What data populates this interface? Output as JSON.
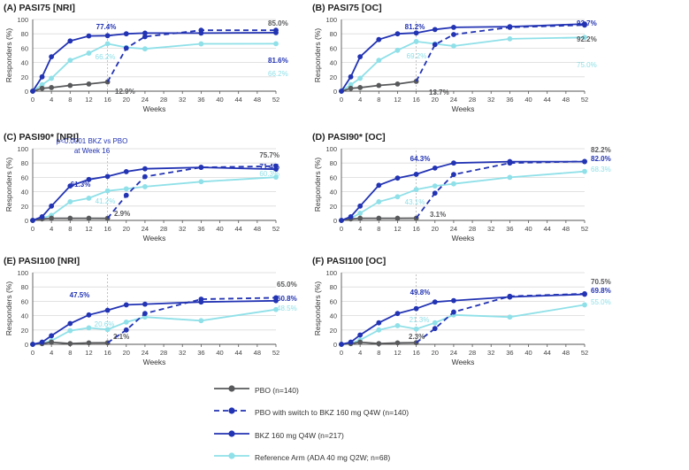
{
  "colors": {
    "pbo": "#58595b",
    "switch": "#2233b3",
    "bkz": "#2233b3",
    "ada": "#8fe0e8",
    "grid": "#d9d9d9",
    "axis": "#555555",
    "dashed_ref": "#b5b5b5"
  },
  "legend": {
    "items": [
      {
        "key": "pbo",
        "label": "PBO (n=140)"
      },
      {
        "key": "switch",
        "label": "PBO with switch to BKZ 160 mg Q4W (n=140)"
      },
      {
        "key": "bkz",
        "label": "BKZ 160 mg Q4W (n=217)"
      },
      {
        "key": "ada",
        "label": "Reference Arm (ADA 40 mg Q2W; n=68)"
      }
    ]
  },
  "chart_data": [
    {
      "type": "line",
      "title": "(A) PASI75 [NRI]",
      "xlabel": "Weeks",
      "ylabel": "Responders (%)",
      "xlim": [
        0,
        52
      ],
      "ylim": [
        0,
        100
      ],
      "xticks": [
        0,
        4,
        8,
        12,
        16,
        20,
        24,
        28,
        32,
        36,
        40,
        44,
        48,
        52
      ],
      "yticks": [
        0,
        20,
        40,
        60,
        80,
        100
      ],
      "series": [
        {
          "name": "PBO (n=140)",
          "key": "pbo",
          "x": [
            0,
            2,
            4,
            8,
            12,
            16
          ],
          "y": [
            0,
            4,
            5,
            8,
            10,
            12.9
          ]
        },
        {
          "name": "PBO with switch to BKZ 160 mg Q4W (n=140)",
          "key": "switch",
          "x": [
            16,
            20,
            24,
            36,
            52
          ],
          "y": [
            12.9,
            60,
            76,
            85,
            85.0
          ]
        },
        {
          "name": "BKZ 160 mg Q4W (n=217)",
          "key": "bkz",
          "x": [
            0,
            2,
            4,
            8,
            12,
            16,
            20,
            24,
            36,
            52
          ],
          "y": [
            0,
            20,
            48,
            70,
            77,
            77.4,
            80,
            81,
            81,
            81.6
          ]
        },
        {
          "name": "Reference Arm (ADA 40 mg Q2W; n=68)",
          "key": "ada",
          "x": [
            0,
            2,
            4,
            8,
            12,
            16,
            20,
            24,
            36,
            52
          ],
          "y": [
            0,
            9,
            18,
            43,
            53,
            66.2,
            61,
            59,
            66,
            66.2
          ]
        }
      ],
      "annotations": [
        {
          "text": "77.4%",
          "color": "bkz",
          "bold": true
        },
        {
          "text": "66.2%",
          "color": "ada",
          "bold": false
        },
        {
          "text": "12.9%",
          "color": "pbo",
          "bold": true
        },
        {
          "text": "85.0%",
          "color": "pbo",
          "bold": true
        },
        {
          "text": "81.6%",
          "color": "bkz",
          "bold": true
        },
        {
          "text": "66.2%",
          "color": "ada",
          "bold": false
        }
      ]
    },
    {
      "type": "line",
      "title": "(B) PASI75 [OC]",
      "xlabel": "Weeks",
      "ylabel": "Responders (%)",
      "xlim": [
        0,
        52
      ],
      "ylim": [
        0,
        100
      ],
      "xticks": [
        0,
        4,
        8,
        12,
        16,
        20,
        24,
        28,
        32,
        36,
        40,
        44,
        48,
        52
      ],
      "yticks": [
        0,
        20,
        40,
        60,
        80,
        100
      ],
      "series": [
        {
          "name": "PBO (n=140)",
          "key": "pbo",
          "x": [
            0,
            2,
            4,
            8,
            12,
            16
          ],
          "y": [
            0,
            4,
            5,
            8,
            10,
            13.7
          ]
        },
        {
          "name": "PBO with switch to BKZ 160 mg Q4W (n=140)",
          "key": "switch",
          "x": [
            16,
            20,
            24,
            36,
            52
          ],
          "y": [
            13.7,
            65,
            79,
            89,
            92.2
          ]
        },
        {
          "name": "BKZ 160 mg Q4W (n=217)",
          "key": "bkz",
          "x": [
            0,
            2,
            4,
            8,
            12,
            16,
            20,
            24,
            36,
            52
          ],
          "y": [
            0,
            20,
            48,
            72,
            80,
            81.2,
            86,
            89,
            90,
            93.7
          ]
        },
        {
          "name": "Reference Arm (ADA 40 mg Q2W; n=68)",
          "key": "ada",
          "x": [
            0,
            2,
            4,
            8,
            12,
            16,
            20,
            24,
            36,
            52
          ],
          "y": [
            0,
            9,
            18,
            43,
            57,
            69.2,
            66,
            63,
            73,
            75.0
          ]
        }
      ],
      "annotations": [
        {
          "text": "81.2%",
          "color": "bkz",
          "bold": true
        },
        {
          "text": "69.2%",
          "color": "ada",
          "bold": false
        },
        {
          "text": "13.7%",
          "color": "pbo",
          "bold": true
        },
        {
          "text": "93.7%",
          "color": "bkz",
          "bold": true
        },
        {
          "text": "92.2%",
          "color": "pbo",
          "bold": true
        },
        {
          "text": "75.0%",
          "color": "ada",
          "bold": false
        }
      ]
    },
    {
      "type": "line",
      "title": "(C) PASI90* [NRI]",
      "xlabel": "Weeks",
      "ylabel": "Responders (%)",
      "xlim": [
        0,
        52
      ],
      "ylim": [
        0,
        100
      ],
      "xticks": [
        0,
        4,
        8,
        12,
        16,
        20,
        24,
        28,
        32,
        36,
        40,
        44,
        48,
        52
      ],
      "yticks": [
        0,
        20,
        40,
        60,
        80,
        100
      ],
      "series": [
        {
          "name": "PBO (n=140)",
          "key": "pbo",
          "x": [
            0,
            2,
            4,
            8,
            12,
            16
          ],
          "y": [
            0,
            2,
            3,
            3,
            3,
            2.9
          ]
        },
        {
          "name": "PBO with switch to BKZ 160 mg Q4W (n=140)",
          "key": "switch",
          "x": [
            16,
            20,
            24,
            36,
            52
          ],
          "y": [
            2.9,
            35,
            61,
            74,
            75.7
          ]
        },
        {
          "name": "BKZ 160 mg Q4W (n=217)",
          "key": "bkz",
          "x": [
            0,
            2,
            4,
            8,
            12,
            16,
            20,
            24,
            36,
            52
          ],
          "y": [
            0,
            5,
            20,
            48,
            57,
            61.3,
            68,
            72,
            74,
            71.4
          ]
        },
        {
          "name": "Reference Arm (ADA 40 mg Q2W; n=68)",
          "key": "ada",
          "x": [
            0,
            2,
            4,
            8,
            12,
            16,
            20,
            24,
            36,
            52
          ],
          "y": [
            0,
            3,
            7,
            26,
            31,
            41.2,
            44,
            47,
            54,
            60.3
          ]
        }
      ],
      "annotations": [
        {
          "text": "p<0.0001 BKZ vs PBO",
          "color": "bkz",
          "bold": false
        },
        {
          "text": "at Week 16",
          "color": "bkz",
          "bold": false
        },
        {
          "text": "61.3%",
          "color": "bkz",
          "bold": true
        },
        {
          "text": "41.2%",
          "color": "ada",
          "bold": false
        },
        {
          "text": "2.9%",
          "color": "pbo",
          "bold": true
        },
        {
          "text": "75.7%",
          "color": "pbo",
          "bold": true
        },
        {
          "text": "71.4%",
          "color": "bkz",
          "bold": true
        },
        {
          "text": "60.3%",
          "color": "ada",
          "bold": false
        }
      ]
    },
    {
      "type": "line",
      "title": "(D) PASI90* [OC]",
      "xlabel": "Weeks",
      "ylabel": "Responders (%)",
      "xlim": [
        0,
        52
      ],
      "ylim": [
        0,
        100
      ],
      "xticks": [
        0,
        4,
        8,
        12,
        16,
        20,
        24,
        28,
        32,
        36,
        40,
        44,
        48,
        52
      ],
      "yticks": [
        0,
        20,
        40,
        60,
        80,
        100
      ],
      "series": [
        {
          "name": "PBO (n=140)",
          "key": "pbo",
          "x": [
            0,
            2,
            4,
            8,
            12,
            16
          ],
          "y": [
            0,
            2,
            3,
            3,
            3,
            3.1
          ]
        },
        {
          "name": "PBO with switch to BKZ 160 mg Q4W (n=140)",
          "key": "switch",
          "x": [
            16,
            20,
            24,
            36,
            52
          ],
          "y": [
            3.1,
            38,
            64,
            80,
            82.2
          ]
        },
        {
          "name": "BKZ 160 mg Q4W (n=217)",
          "key": "bkz",
          "x": [
            0,
            2,
            4,
            8,
            12,
            16,
            20,
            24,
            36,
            52
          ],
          "y": [
            0,
            5,
            20,
            49,
            59,
            64.3,
            73,
            80,
            82,
            82.0
          ]
        },
        {
          "name": "Reference Arm (ADA 40 mg Q2W; n=68)",
          "key": "ada",
          "x": [
            0,
            2,
            4,
            8,
            12,
            16,
            20,
            24,
            36,
            52
          ],
          "y": [
            0,
            3,
            10,
            26,
            33,
            43.1,
            48,
            51,
            60,
            68.3
          ]
        }
      ],
      "annotations": [
        {
          "text": "64.3%",
          "color": "bkz",
          "bold": true
        },
        {
          "text": "43.1%",
          "color": "ada",
          "bold": false
        },
        {
          "text": "3.1%",
          "color": "pbo",
          "bold": true
        },
        {
          "text": "82.2%",
          "color": "pbo",
          "bold": true
        },
        {
          "text": "82.0%",
          "color": "bkz",
          "bold": true
        },
        {
          "text": "68.3%",
          "color": "ada",
          "bold": false
        }
      ]
    },
    {
      "type": "line",
      "title": "(E) PASI100 [NRI]",
      "xlabel": "Weeks",
      "ylabel": "Responders (%)",
      "xlim": [
        0,
        52
      ],
      "ylim": [
        0,
        100
      ],
      "xticks": [
        0,
        4,
        8,
        12,
        16,
        20,
        24,
        28,
        32,
        36,
        40,
        44,
        48,
        52
      ],
      "yticks": [
        0,
        20,
        40,
        60,
        80,
        100
      ],
      "series": [
        {
          "name": "PBO (n=140)",
          "key": "pbo",
          "x": [
            0,
            2,
            4,
            8,
            12,
            16
          ],
          "y": [
            0,
            1,
            3,
            1,
            2,
            2.1
          ]
        },
        {
          "name": "PBO with switch to BKZ 160 mg Q4W (n=140)",
          "key": "switch",
          "x": [
            16,
            20,
            24,
            36,
            52
          ],
          "y": [
            2.1,
            20,
            43,
            63,
            65.0
          ]
        },
        {
          "name": "BKZ 160 mg Q4W (n=217)",
          "key": "bkz",
          "x": [
            0,
            2,
            4,
            8,
            12,
            16,
            20,
            24,
            36,
            52
          ],
          "y": [
            0,
            3,
            12,
            29,
            41,
            47.5,
            55,
            56,
            59,
            60.8
          ]
        },
        {
          "name": "Reference Arm (ADA 40 mg Q2W; n=68)",
          "key": "ada",
          "x": [
            0,
            2,
            4,
            8,
            12,
            16,
            20,
            24,
            36,
            52
          ],
          "y": [
            0,
            1,
            5,
            19,
            23,
            20.6,
            31,
            38,
            33,
            48.5
          ]
        }
      ],
      "annotations": [
        {
          "text": "47.5%",
          "color": "bkz",
          "bold": true
        },
        {
          "text": "20.6%",
          "color": "ada",
          "bold": false
        },
        {
          "text": "2.1%",
          "color": "pbo",
          "bold": true
        },
        {
          "text": "65.0%",
          "color": "pbo",
          "bold": true
        },
        {
          "text": "60.8%",
          "color": "bkz",
          "bold": true
        },
        {
          "text": "48.5%",
          "color": "ada",
          "bold": false
        }
      ]
    },
    {
      "type": "line",
      "title": "(F) PASI100 [OC]",
      "xlabel": "Weeks",
      "ylabel": "Responders (%)",
      "xlim": [
        0,
        52
      ],
      "ylim": [
        0,
        100
      ],
      "xticks": [
        0,
        4,
        8,
        12,
        16,
        20,
        24,
        28,
        32,
        36,
        40,
        44,
        48,
        52
      ],
      "yticks": [
        0,
        20,
        40,
        60,
        80,
        100
      ],
      "series": [
        {
          "name": "PBO (n=140)",
          "key": "pbo",
          "x": [
            0,
            2,
            4,
            8,
            12,
            16
          ],
          "y": [
            0,
            1,
            3,
            1,
            2,
            2.3
          ]
        },
        {
          "name": "PBO with switch to BKZ 160 mg Q4W (n=140)",
          "key": "switch",
          "x": [
            16,
            20,
            24,
            36,
            52
          ],
          "y": [
            2.3,
            22,
            45,
            67,
            70.5
          ]
        },
        {
          "name": "BKZ 160 mg Q4W (n=217)",
          "key": "bkz",
          "x": [
            0,
            2,
            4,
            8,
            12,
            16,
            20,
            24,
            36,
            52
          ],
          "y": [
            0,
            3,
            13,
            30,
            43,
            49.8,
            59,
            61,
            66,
            69.8
          ]
        },
        {
          "name": "Reference Arm (ADA 40 mg Q2W; n=68)",
          "key": "ada",
          "x": [
            0,
            2,
            4,
            8,
            12,
            16,
            20,
            24,
            36,
            52
          ],
          "y": [
            0,
            1,
            6,
            20,
            26,
            21.3,
            30,
            41,
            38,
            55.0
          ]
        }
      ],
      "annotations": [
        {
          "text": "49.8%",
          "color": "bkz",
          "bold": true
        },
        {
          "text": "21.3%",
          "color": "ada",
          "bold": false
        },
        {
          "text": "2.3%",
          "color": "pbo",
          "bold": true
        },
        {
          "text": "70.5%",
          "color": "pbo",
          "bold": true
        },
        {
          "text": "69.8%",
          "color": "bkz",
          "bold": true
        },
        {
          "text": "55.0%",
          "color": "ada",
          "bold": false
        }
      ]
    }
  ]
}
